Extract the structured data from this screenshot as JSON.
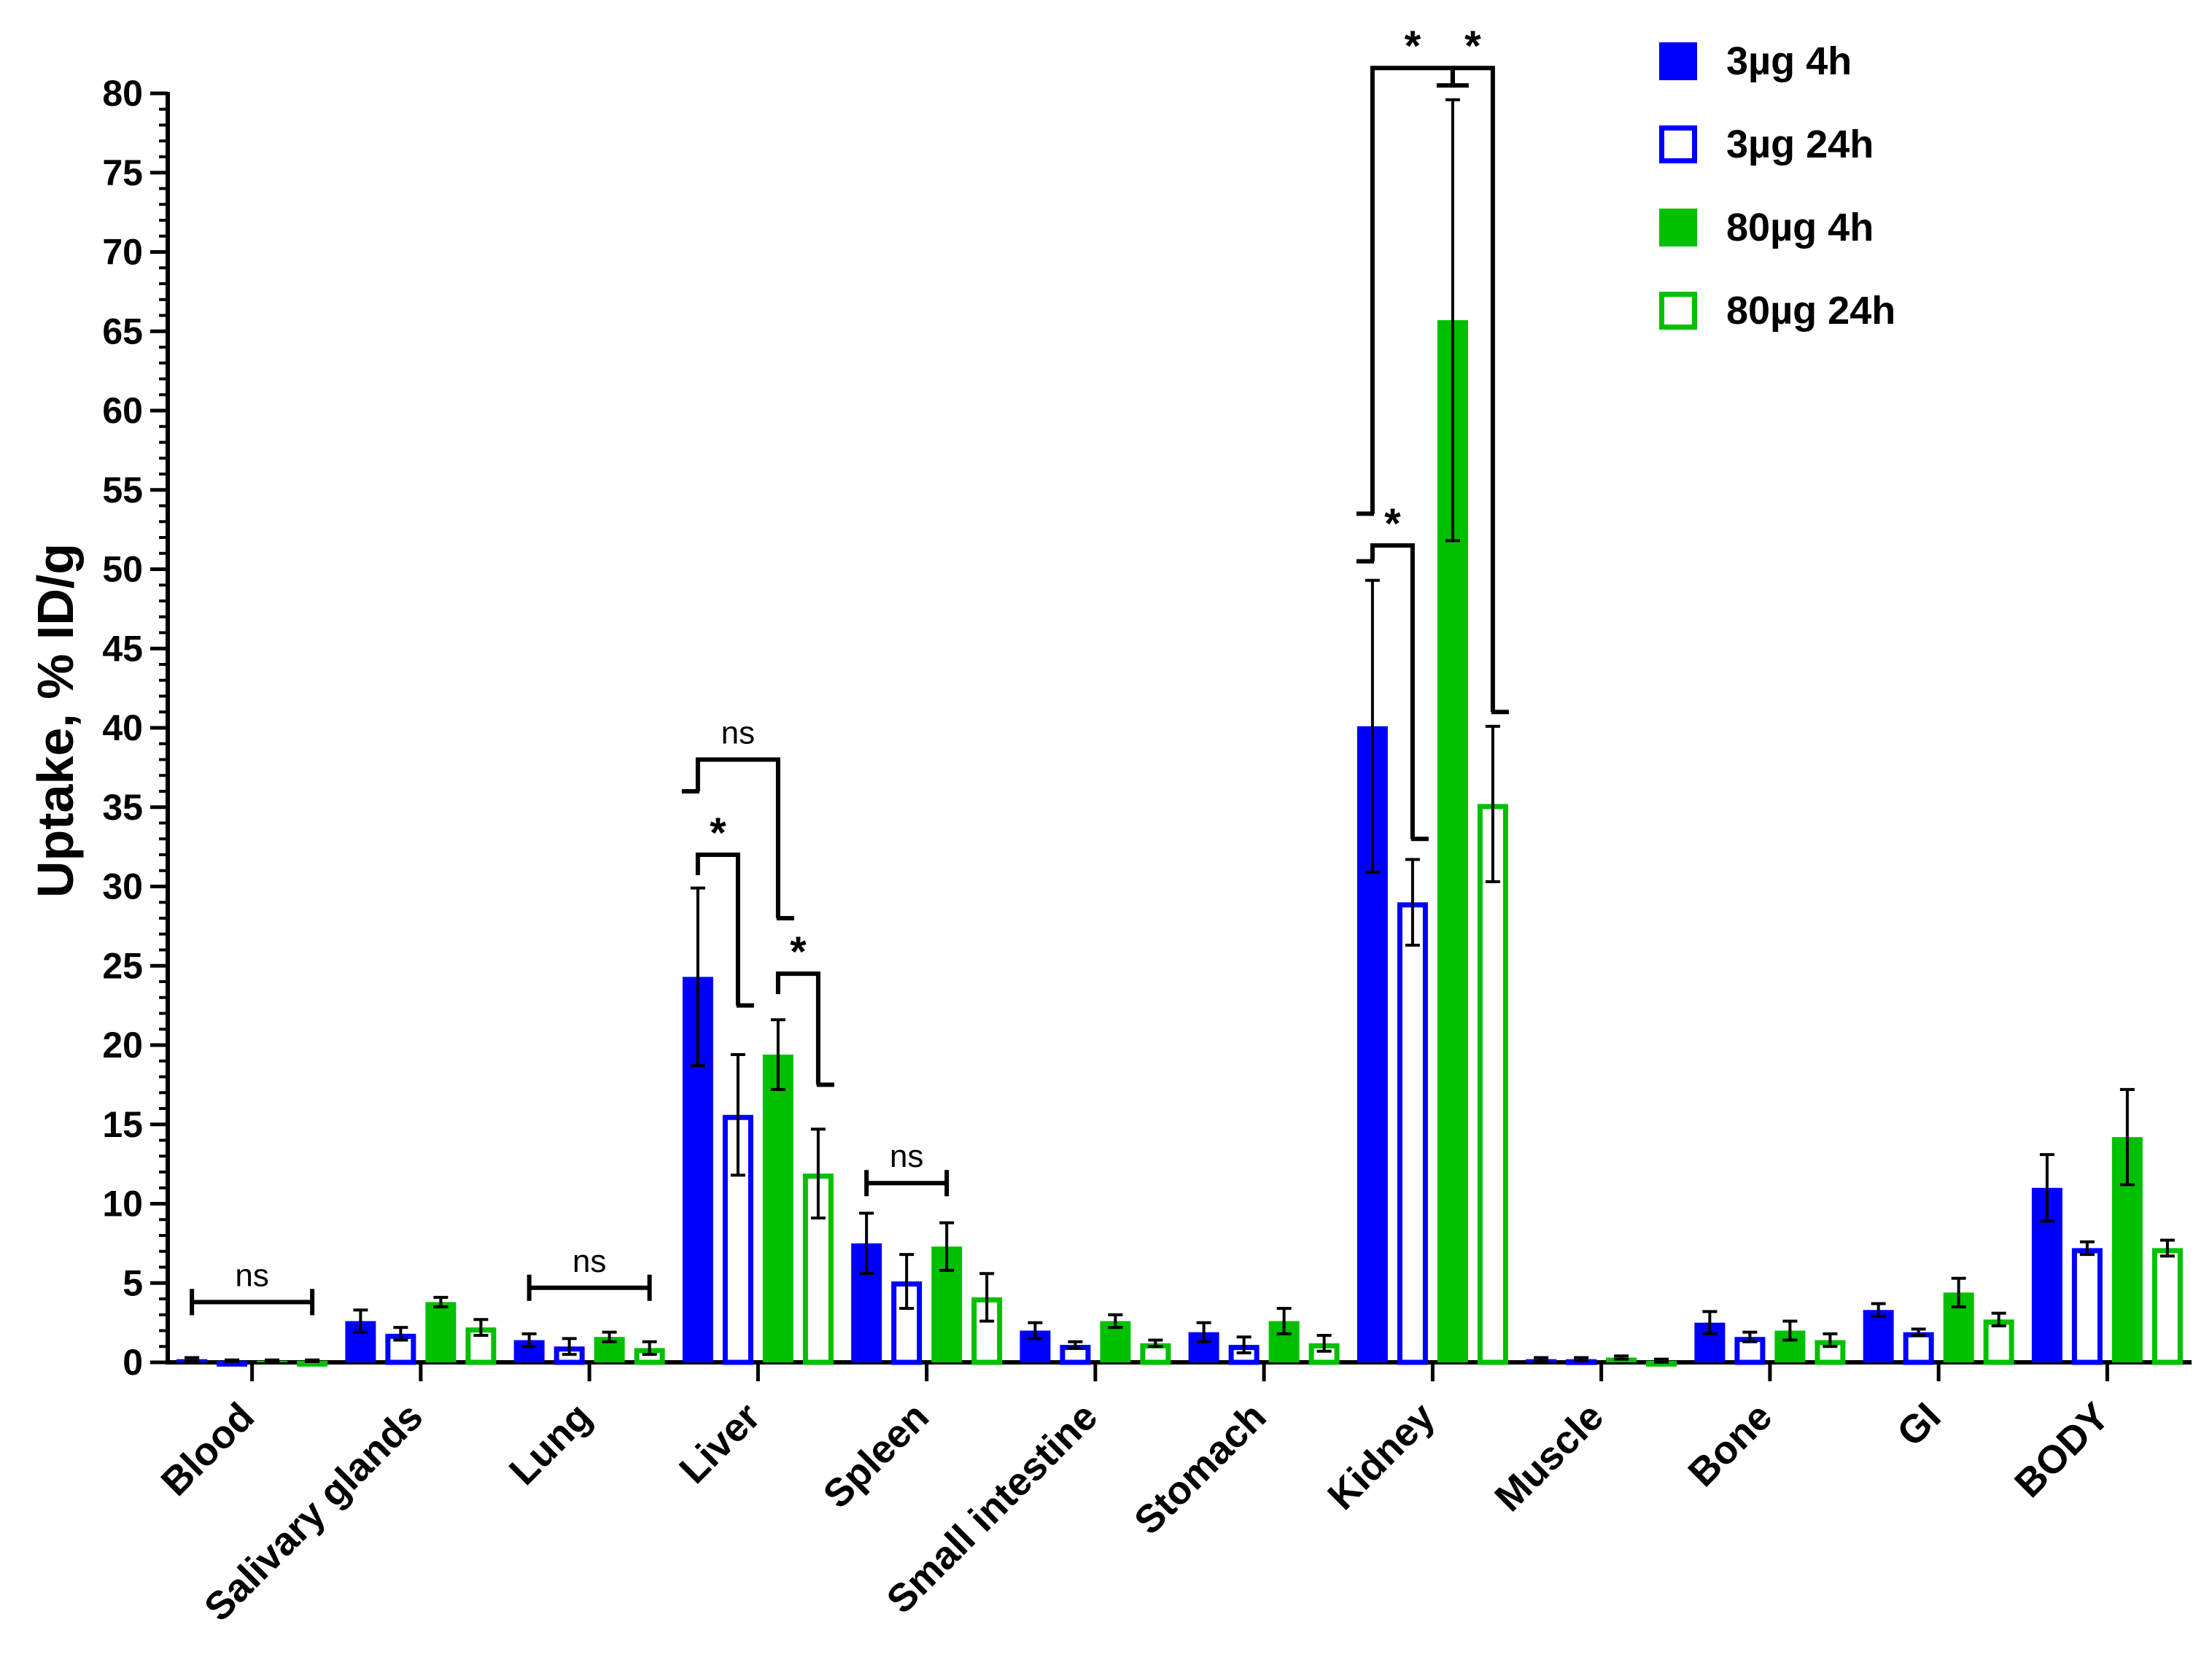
{
  "chart_data": {
    "type": "bar",
    "title": "",
    "xlabel": "",
    "ylabel": "Uptake, % ID/g",
    "ylim": [
      0,
      80
    ],
    "ytick_step": 5,
    "categories": [
      "Blood",
      "Salivary glands",
      "Lung",
      "Liver",
      "Spleen",
      "Small intestine",
      "Stomach",
      "Kidney",
      "Muscle",
      "Bone",
      "GI",
      "BODY"
    ],
    "series": [
      {
        "name": "3µg 4h",
        "style": "filled",
        "color": "#0000FF",
        "values": [
          0.2,
          2.6,
          1.4,
          24.3,
          7.5,
          2.0,
          1.9,
          40.1,
          0.2,
          2.5,
          3.3,
          11.0
        ],
        "errors": [
          0.1,
          0.7,
          0.4,
          5.6,
          1.9,
          0.5,
          0.6,
          9.2,
          0.1,
          0.7,
          0.4,
          2.1
        ]
      },
      {
        "name": "3µg 24h",
        "style": "open",
        "color": "#0000FF",
        "values": [
          0.1,
          1.8,
          1.0,
          15.6,
          5.1,
          1.1,
          1.1,
          29.0,
          0.2,
          1.6,
          1.9,
          7.2
        ],
        "errors": [
          0.05,
          0.4,
          0.5,
          3.8,
          1.7,
          0.2,
          0.5,
          2.7,
          0.1,
          0.3,
          0.2,
          0.4
        ]
      },
      {
        "name": "80µg 4h",
        "style": "filled",
        "color": "#00C000",
        "values": [
          0.1,
          3.8,
          1.6,
          19.4,
          7.3,
          2.6,
          2.6,
          65.7,
          0.3,
          2.0,
          4.4,
          14.2
        ],
        "errors": [
          0.05,
          0.3,
          0.3,
          2.2,
          1.5,
          0.4,
          0.8,
          13.9,
          0.1,
          0.6,
          0.9,
          3.0
        ]
      },
      {
        "name": "80µg 24h",
        "style": "open",
        "color": "#00C000",
        "values": [
          0.1,
          2.2,
          0.9,
          11.9,
          4.1,
          1.2,
          1.2,
          35.2,
          0.1,
          1.4,
          2.7,
          7.2
        ],
        "errors": [
          0.05,
          0.5,
          0.4,
          2.8,
          1.5,
          0.2,
          0.5,
          4.9,
          0.1,
          0.4,
          0.4,
          0.5
        ]
      }
    ],
    "legend": {
      "position": "top-right",
      "entries": [
        "3µg 4h",
        "3µg 24h",
        "80µg 4h",
        "80µg 24h"
      ]
    },
    "annotations": [
      {
        "label": "ns",
        "category": "Blood",
        "type": "bracket",
        "between": [
          0,
          3
        ],
        "level": 3.8
      },
      {
        "label": "ns",
        "category": "Lung",
        "type": "bracket",
        "between": [
          0,
          3
        ],
        "level": 4.7
      },
      {
        "label": "*",
        "category": "Liver",
        "type": "bracket",
        "between": [
          0,
          1
        ],
        "level": 32.0,
        "drop_right": 22.5
      },
      {
        "label": "ns",
        "category": "Liver",
        "type": "bracket",
        "between": [
          0,
          2
        ],
        "level": 38.0,
        "drop_left": 36.0,
        "drop_right": 28.0
      },
      {
        "label": "*",
        "category": "Liver",
        "type": "bracket",
        "between": [
          2,
          3
        ],
        "level": 24.5,
        "drop_right": 17.5
      },
      {
        "label": "ns",
        "category": "Spleen",
        "type": "bracket",
        "between": [
          0,
          2
        ],
        "level": 11.3
      },
      {
        "label": "*",
        "category": "Kidney",
        "type": "bracket",
        "between": [
          0,
          1
        ],
        "level": 51.5,
        "drop_left": 50.5,
        "drop_right": 33.0
      },
      {
        "label": "*",
        "category": "Kidney",
        "type": "bracket",
        "between": [
          0,
          2
        ],
        "level": 81.6,
        "drop_left": 53.5,
        "drop_right": 80.5
      },
      {
        "label": "*",
        "category": "Kidney",
        "type": "bracket",
        "between": [
          2,
          3
        ],
        "level": 81.6,
        "drop_left": 80.5,
        "drop_right": 41.0
      }
    ]
  }
}
